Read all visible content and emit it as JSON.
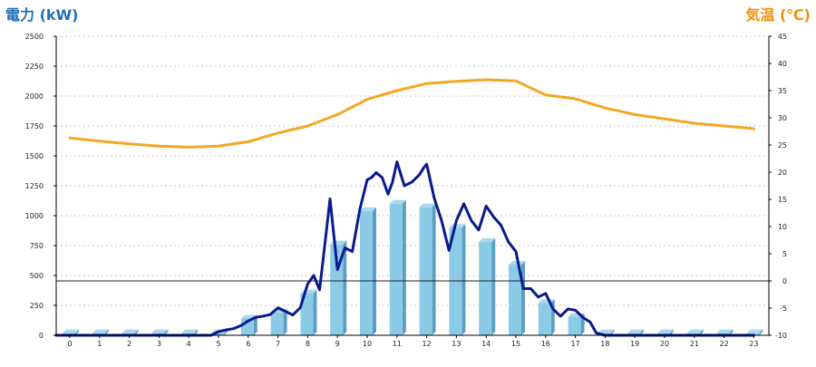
{
  "chart_data": {
    "type": "bar",
    "left_axis_title": "電力 (kW)",
    "right_axis_title": "気温 (℃)",
    "colors": {
      "left_title": "#1f6fb4",
      "right_title": "#f0900a",
      "bar_front": "#8ccbe8",
      "bar_side": "#5a9fc2",
      "bar_top": "#a9d9ef",
      "power_line": "#0a1a8c",
      "temperature_line": "#f5a623"
    },
    "left_ylim": [
      0,
      2500
    ],
    "left_ticks": [
      "0",
      "250",
      "500",
      "750",
      "1000",
      "1250",
      "1500",
      "1750",
      "2000",
      "2250",
      "2500"
    ],
    "right_ylim": [
      -10,
      45
    ],
    "right_ticks": [
      "-10",
      "-5",
      "0",
      "5",
      "10",
      "15",
      "20",
      "25",
      "30",
      "35",
      "40",
      "45"
    ],
    "categories": [
      "0",
      "1",
      "2",
      "3",
      "4",
      "5",
      "6",
      "7",
      "8",
      "9",
      "10",
      "11",
      "12",
      "13",
      "14",
      "15",
      "16",
      "17",
      "18",
      "19",
      "20",
      "21",
      "22",
      "23"
    ],
    "series": [
      {
        "key": "bars",
        "axis": "left",
        "values": [
          18,
          18,
          18,
          18,
          18,
          18,
          140,
          190,
          350,
          760,
          1040,
          1100,
          1070,
          900,
          780,
          590,
          270,
          155,
          18,
          18,
          18,
          18,
          18,
          18
        ]
      },
      {
        "key": "power_line",
        "axis": "left",
        "x": [
          0,
          1,
          2,
          3,
          4,
          4.75,
          5,
          5.25,
          5.5,
          5.75,
          6,
          6.25,
          6.5,
          6.75,
          7,
          7.25,
          7.5,
          7.75,
          8,
          8.2,
          8.4,
          8.55,
          8.75,
          9,
          9.25,
          9.5,
          9.75,
          10,
          10.15,
          10.3,
          10.5,
          10.7,
          10.85,
          11,
          11.25,
          11.5,
          11.75,
          11.9,
          12,
          12.25,
          12.5,
          12.75,
          13,
          13.25,
          13.5,
          13.75,
          14,
          14.25,
          14.5,
          14.75,
          15,
          15.25,
          15.5,
          15.75,
          16,
          16.25,
          16.5,
          16.75,
          17,
          17.25,
          17.5,
          17.7,
          18,
          19,
          20,
          21,
          22,
          23
        ],
        "values": [
          0,
          0,
          0,
          0,
          0,
          0,
          30,
          45,
          55,
          80,
          120,
          150,
          160,
          175,
          230,
          200,
          170,
          230,
          430,
          500,
          380,
          700,
          1140,
          550,
          730,
          700,
          1050,
          1300,
          1320,
          1360,
          1320,
          1180,
          1280,
          1450,
          1250,
          1280,
          1340,
          1400,
          1430,
          1150,
          960,
          710,
          960,
          1100,
          960,
          880,
          1080,
          990,
          920,
          780,
          700,
          390,
          390,
          320,
          350,
          220,
          160,
          220,
          210,
          150,
          110,
          20,
          0,
          0,
          0,
          0,
          0,
          0
        ]
      },
      {
        "key": "temperature_line",
        "axis": "right",
        "x": [
          0,
          1,
          2,
          3,
          4,
          5,
          6,
          7,
          8,
          9,
          10,
          11,
          12,
          13,
          14,
          15,
          16,
          17,
          18,
          19,
          20,
          21,
          22,
          23
        ],
        "values": [
          26.3,
          25.7,
          25.2,
          24.8,
          24.6,
          24.8,
          25.6,
          27.2,
          28.5,
          30.6,
          33.4,
          35.0,
          36.3,
          36.7,
          37.0,
          36.8,
          34.2,
          33.5,
          31.8,
          30.6,
          29.8,
          29.0,
          28.5,
          28.0
        ]
      }
    ]
  }
}
